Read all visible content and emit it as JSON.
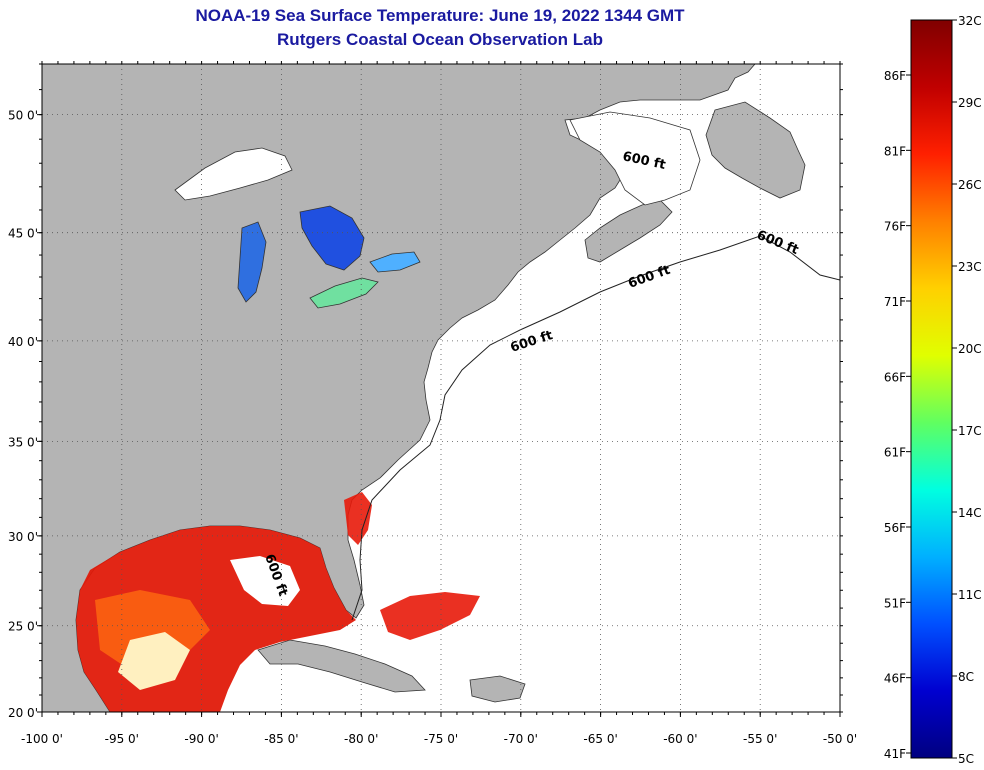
{
  "header": {
    "title": "NOAA-19 Sea Surface Temperature:  June 19, 2022 1344 GMT",
    "subtitle": "Rutgers Coastal Ocean Observation Lab"
  },
  "map": {
    "lon_ticks": [
      "-100 0'",
      "-95 0'",
      "-90 0'",
      "-85 0'",
      "-80 0'",
      "-75 0'",
      "-70 0'",
      "-65 0'",
      "-60 0'",
      "-55 0'",
      "-50 0'"
    ],
    "lat_ticks": [
      "50 0'",
      "45 0'",
      "40 0'",
      "35 0'",
      "30 0'",
      "25 0'",
      "20 0'"
    ],
    "lon_range": [
      -100,
      -50
    ],
    "lat_range": [
      20,
      52
    ],
    "contour_label": "600 ft",
    "land_color": "#b4b4b4",
    "ocean_color": "#ffffff"
  },
  "colorbar": {
    "celsius_labels": [
      "32C",
      "29C",
      "26C",
      "23C",
      "20C",
      "17C",
      "14C",
      "11C",
      "8C",
      "5C"
    ],
    "fahrenheit_labels": [
      "86F",
      "81F",
      "76F",
      "71F",
      "66F",
      "61F",
      "56F",
      "51F",
      "46F",
      "41F"
    ],
    "stops": [
      "#800000",
      "#c00000",
      "#ff2000",
      "#ff8000",
      "#ffd000",
      "#e0ff00",
      "#60ff60",
      "#00ffe0",
      "#00b0ff",
      "#0050ff",
      "#0000d0",
      "#000080"
    ]
  }
}
